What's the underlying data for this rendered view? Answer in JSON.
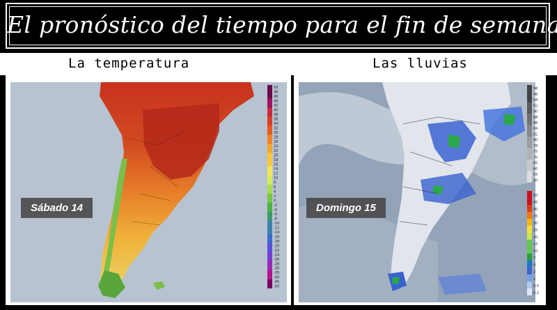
{
  "header": {
    "title": "El pronóstico del tiempo para el fin de semana"
  },
  "panels": {
    "temperature": {
      "label": "La temperatura",
      "day": "Sábado 14"
    },
    "rain": {
      "label": "Las lluvias",
      "day": "Domingo 15"
    }
  },
  "temp_scale": {
    "ticks": [
      "50",
      "48",
      "46",
      "44",
      "42",
      "40",
      "38",
      "36",
      "34",
      "32",
      "30",
      "28",
      "26",
      "24",
      "22",
      "20",
      "18",
      "16",
      "14",
      "12",
      "10",
      "8",
      "6",
      "4",
      "2",
      "0",
      "-2",
      "-4",
      "-6",
      "-8",
      "-10",
      "-12",
      "-14",
      "-16",
      "-18",
      "-20",
      "-22",
      "-24",
      "-26",
      "-28",
      "-30",
      "-35",
      "-40",
      "-45",
      "-50"
    ]
  },
  "rain_scale_top": {
    "ticks": [
      "98",
      "96",
      "94",
      "92",
      "90",
      "88",
      "86",
      "84",
      "82",
      "80",
      "78",
      "75",
      "70",
      "65",
      "60",
      "55",
      "50"
    ]
  },
  "rain_scale_bottom": {
    "ticks": [
      "50",
      "45",
      "40",
      "35",
      "30",
      "25",
      "20",
      "15",
      "10",
      "7",
      "4",
      "2",
      "1",
      "0.5",
      "0.2"
    ]
  },
  "colors": {
    "background": "#000000",
    "title_text": "#ffffff",
    "panel_bg": "#ffffff"
  }
}
